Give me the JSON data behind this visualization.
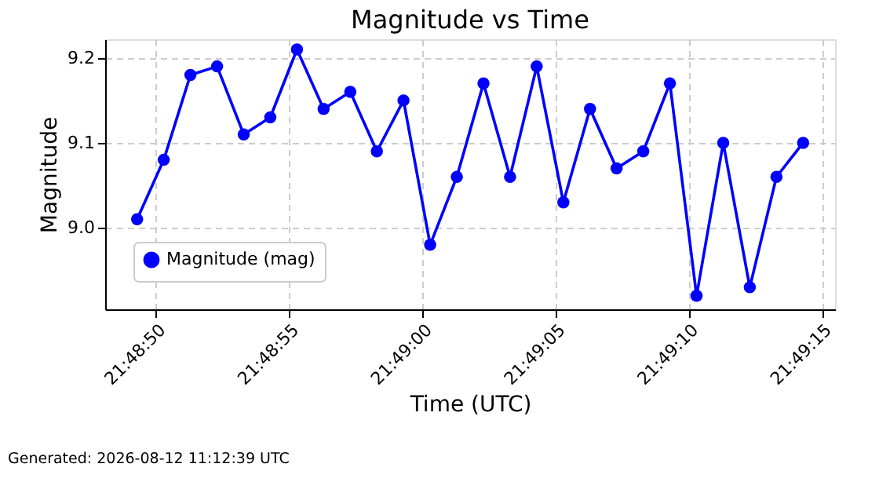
{
  "chart_data": {
    "type": "line",
    "title": "Magnitude vs Time",
    "xlabel": "Time (UTC)",
    "ylabel": "Magnitude",
    "x": [
      21.813694,
      21.813972,
      21.81425,
      21.814528,
      21.814806,
      21.815083,
      21.815361,
      21.815639,
      21.815917,
      21.816194,
      21.816472,
      21.81675,
      21.817028,
      21.817306,
      21.817583,
      21.817861,
      21.818139,
      21.818417,
      21.818694,
      21.818972,
      21.81925,
      21.819528,
      21.819806,
      21.820083,
      21.820361,
      21.820639
    ],
    "series": [
      {
        "name": "Magnitude (mag)",
        "color": "#0000ff",
        "values": [
          9.01,
          9.08,
          9.18,
          9.19,
          9.11,
          9.13,
          9.21,
          9.14,
          9.16,
          9.09,
          9.15,
          8.98,
          9.06,
          9.17,
          9.06,
          9.19,
          9.03,
          9.14,
          9.07,
          9.09,
          9.17,
          8.92,
          9.1,
          8.93,
          9.06,
          9.1
        ]
      }
    ],
    "xlim": [
      21.813361,
      21.820972
    ],
    "xticks": [
      {
        "value": 21.813889,
        "label": "21:48:50"
      },
      {
        "value": 21.815278,
        "label": "21:48:55"
      },
      {
        "value": 21.816667,
        "label": "21:49:00"
      },
      {
        "value": 21.818056,
        "label": "21:49:05"
      },
      {
        "value": 21.819444,
        "label": "21:49:10"
      },
      {
        "value": 21.820833,
        "label": "21:49:15"
      }
    ],
    "ylim": [
      8.904,
      9.222
    ],
    "yticks": [
      {
        "value": 9.0,
        "label": "9.0"
      },
      {
        "value": 9.1,
        "label": "9.1"
      },
      {
        "value": 9.2,
        "label": "9.2"
      }
    ],
    "grid": true,
    "legend": "bottom left",
    "marker": "circle",
    "line_style": "solid",
    "annotations": [
      "Generated: 2026-08-12 11:12:39 UTC"
    ]
  }
}
